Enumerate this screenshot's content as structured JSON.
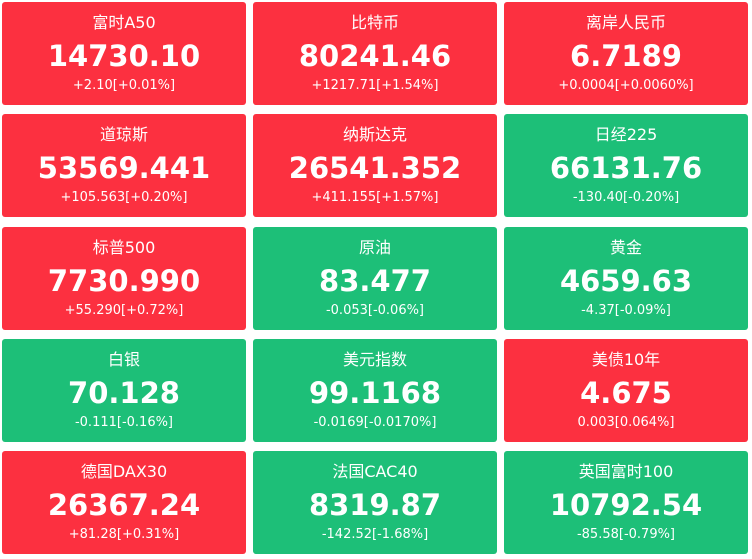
{
  "tiles": [
    {
      "name": "富时A50",
      "price": "14730.10",
      "change": "+2.10[+0.01%]",
      "color": "#fc3040"
    },
    {
      "name": "比特币",
      "price": "80241.46",
      "change": "+1217.71[+1.54%]",
      "color": "#fc3040"
    },
    {
      "name": "离岸人民币",
      "price": "6.7189",
      "change": "+0.0004[+0.0060%]",
      "color": "#fc3040"
    },
    {
      "name": "道琼斯",
      "price": "53569.441",
      "change": "+105.563[+0.20%]",
      "color": "#fc3040"
    },
    {
      "name": "纳斯达克",
      "price": "26541.352",
      "change": "+411.155[+1.57%]",
      "color": "#fc3040"
    },
    {
      "name": "日经225",
      "price": "66131.76",
      "change": "-130.40[-0.20%]",
      "color": "#1dbf78"
    },
    {
      "name": "标普500",
      "price": "7730.990",
      "change": "+55.290[+0.72%]",
      "color": "#fc3040"
    },
    {
      "name": "原油",
      "price": "83.477",
      "change": "-0.053[-0.06%]",
      "color": "#1dbf78"
    },
    {
      "name": "黄金",
      "price": "4659.63",
      "change": "-4.37[-0.09%]",
      "color": "#1dbf78"
    },
    {
      "name": "白银",
      "price": "70.128",
      "change": "-0.111[-0.16%]",
      "color": "#1dbf78"
    },
    {
      "name": "美元指数",
      "price": "99.1168",
      "change": "-0.0169[-0.0170%]",
      "color": "#1dbf78"
    },
    {
      "name": "美债10年",
      "price": "4.675",
      "change": "0.003[0.064%]",
      "color": "#fc3040"
    },
    {
      "name": "德国DAX30",
      "price": "26367.24",
      "change": "+81.28[+0.31%]",
      "color": "#fc3040"
    },
    {
      "name": "法国CAC40",
      "price": "8319.87",
      "change": "-142.52[-1.68%]",
      "color": "#1dbf78"
    },
    {
      "name": "英国富时100",
      "price": "10792.54",
      "change": "-85.58[-0.79%]",
      "color": "#1dbf78"
    }
  ]
}
